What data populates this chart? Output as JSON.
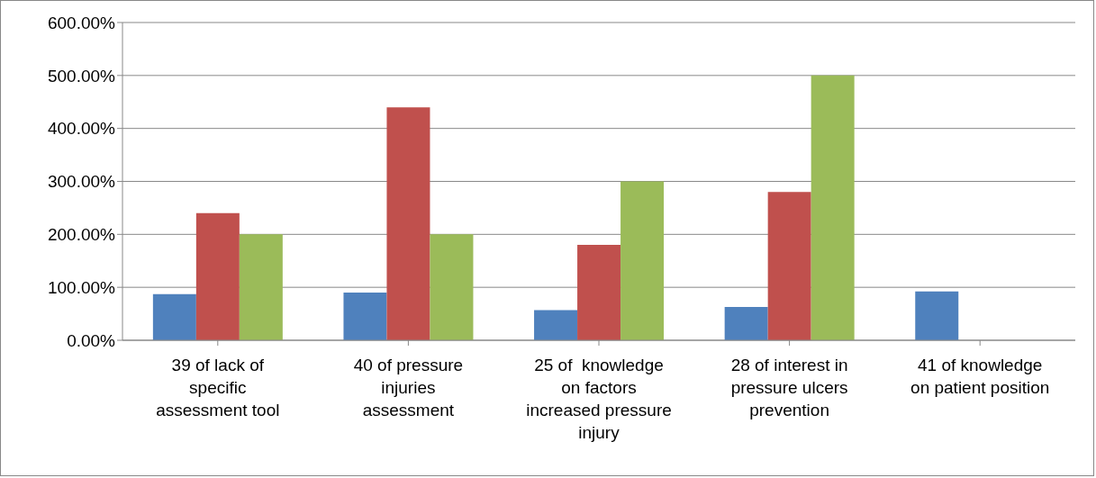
{
  "chart_data": {
    "type": "bar",
    "categories": [
      "39 of lack of\nspecific\nassessment tool",
      "40 of pressure\ninjuries\nassessment",
      "25 of  knowledge\non factors\nincreased pressure\ninjury",
      "28 of interest in\npressure ulcers\nprevention",
      "41 of knowledge\non patient position"
    ],
    "series": [
      {
        "color": "#4f81bd",
        "values": [
          87,
          90,
          57,
          63,
          92
        ]
      },
      {
        "color": "#c0504d",
        "values": [
          240,
          440,
          180,
          280,
          null
        ]
      },
      {
        "color": "#9bbb59",
        "values": [
          200,
          200,
          300,
          500,
          null
        ]
      }
    ],
    "ylim": [
      0,
      600
    ],
    "yticks": [
      {
        "value": 0,
        "label": "0.00%"
      },
      {
        "value": 100,
        "label": "100.00%"
      },
      {
        "value": 200,
        "label": "200.00%"
      },
      {
        "value": 300,
        "label": "300.00%"
      },
      {
        "value": 400,
        "label": "400.00%"
      },
      {
        "value": 500,
        "label": "500.00%"
      },
      {
        "value": 600,
        "label": "600.00%"
      }
    ],
    "grid": "y",
    "legend": false
  }
}
